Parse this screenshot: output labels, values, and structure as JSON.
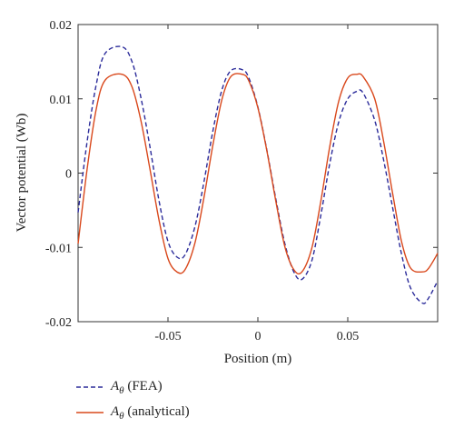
{
  "chart_data": {
    "type": "line",
    "title": "",
    "xlabel": "Position (m)",
    "ylabel": "Vector potential (Wb)",
    "xlim": [
      -0.1,
      0.1
    ],
    "ylim": [
      -0.02,
      0.02
    ],
    "xticks": [
      -0.05,
      0,
      0.05
    ],
    "xtick_labels": [
      "-0.05",
      "0",
      "0.05"
    ],
    "yticks": [
      -0.02,
      -0.01,
      0,
      0.01,
      0.02
    ],
    "ytick_labels": [
      "-0.02",
      "-0.01",
      "0",
      "0.01",
      "0.02"
    ],
    "grid": false,
    "legend_position": "bottom-left",
    "series": [
      {
        "name": "A_θ (FEA)",
        "legend_symbol": "A",
        "legend_subscript": "θ",
        "legend_suffix": "(FEA)",
        "color": "#2b2b9a",
        "style": "dashed",
        "x": [
          -0.1,
          -0.095,
          -0.09,
          -0.085,
          -0.0755,
          -0.07,
          -0.065,
          -0.06,
          -0.055,
          -0.05,
          -0.045,
          -0.0405,
          -0.035,
          -0.03,
          -0.025,
          -0.02,
          -0.015,
          -0.0085,
          -0.005,
          0.0,
          0.005,
          0.01,
          0.015,
          0.02,
          0.0245,
          0.03,
          0.035,
          0.04,
          0.045,
          0.05,
          0.055,
          0.0585,
          0.065,
          0.07,
          0.075,
          0.08,
          0.085,
          0.0915,
          0.095,
          0.1
        ],
        "y": [
          -0.0053,
          0.0042,
          0.0118,
          0.0161,
          0.017,
          0.015,
          0.0101,
          0.0035,
          -0.0037,
          -0.0092,
          -0.0113,
          -0.011,
          -0.0072,
          -0.0012,
          0.0057,
          0.0112,
          0.0138,
          0.0139,
          0.0128,
          0.0089,
          0.0031,
          -0.0035,
          -0.0095,
          -0.0133,
          -0.0143,
          -0.0118,
          -0.0057,
          0.0013,
          0.0069,
          0.01,
          0.011,
          0.0108,
          0.0071,
          0.0017,
          -0.0047,
          -0.011,
          -0.0155,
          -0.0175,
          -0.0168,
          -0.0145
        ]
      },
      {
        "name": "A_θ (analytical)",
        "legend_symbol": "A",
        "legend_subscript": "θ",
        "legend_suffix": "(analytical)",
        "color": "#d9481c",
        "style": "solid",
        "x": [
          -0.1,
          -0.095,
          -0.09,
          -0.085,
          -0.0755,
          -0.07,
          -0.065,
          -0.06,
          -0.055,
          -0.05,
          -0.045,
          -0.0405,
          -0.035,
          -0.03,
          -0.025,
          -0.02,
          -0.015,
          -0.0085,
          -0.005,
          0.0,
          0.005,
          0.01,
          0.015,
          0.02,
          0.0245,
          0.03,
          0.035,
          0.04,
          0.045,
          0.05,
          0.055,
          0.0585,
          0.065,
          0.07,
          0.075,
          0.08,
          0.085,
          0.0915,
          0.095,
          0.1
        ],
        "y": [
          -0.0095,
          0.0005,
          0.0085,
          0.0125,
          0.0133,
          0.0116,
          0.007,
          0.0005,
          -0.0063,
          -0.0115,
          -0.0133,
          -0.013,
          -0.0094,
          -0.0033,
          0.0038,
          0.0099,
          0.013,
          0.0133,
          0.0124,
          0.0088,
          0.003,
          -0.0038,
          -0.0099,
          -0.013,
          -0.0133,
          -0.0101,
          -0.0038,
          0.0036,
          0.0097,
          0.0128,
          0.0133,
          0.013,
          0.01,
          0.0042,
          -0.0028,
          -0.0093,
          -0.0128,
          -0.0133,
          -0.0128,
          -0.0108
        ]
      }
    ]
  }
}
